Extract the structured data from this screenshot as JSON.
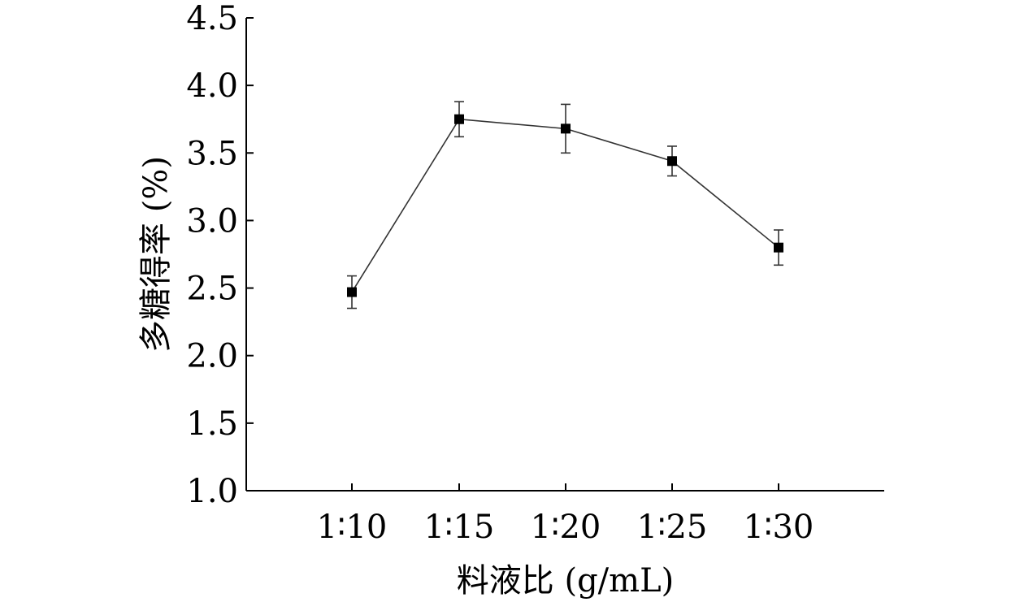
{
  "chart_data": {
    "type": "line",
    "categories": [
      "1∶10",
      "1∶15",
      "1∶20",
      "1∶25",
      "1∶30"
    ],
    "series": [
      {
        "values": [
          2.47,
          3.75,
          3.68,
          3.44,
          2.8
        ],
        "error": [
          0.12,
          0.13,
          0.18,
          0.11,
          0.13
        ]
      }
    ],
    "xlabel": "料液比 (g/mL)",
    "ylabel": "多糖得率 (%)",
    "ylim": [
      1.0,
      4.5
    ],
    "yticks": [
      "1.0",
      "1.5",
      "2.0",
      "2.5",
      "3.0",
      "3.5",
      "4.0",
      "4.5"
    ],
    "grid": false,
    "marker": "square",
    "colors": {
      "line": "#333333",
      "marker": "#000000",
      "axis": "#000000"
    }
  }
}
